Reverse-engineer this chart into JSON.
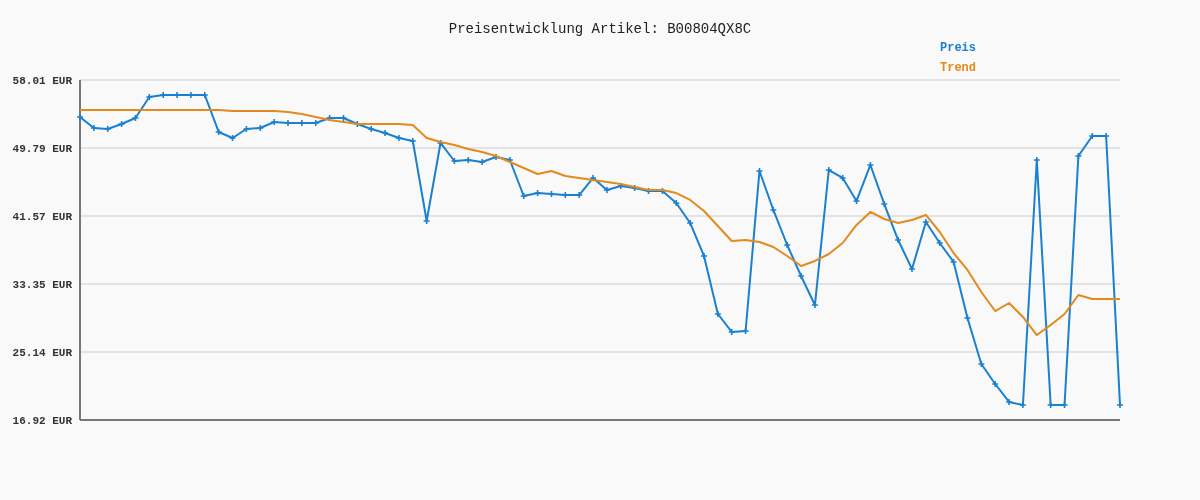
{
  "chart_data": {
    "type": "line",
    "title": "Preisentwicklung Artikel: B00804QX8C",
    "categories": [
      null,
      null,
      null,
      null,
      null,
      null,
      null,
      null,
      null,
      null,
      null,
      null,
      null,
      null,
      null,
      null,
      null,
      null,
      null,
      null,
      null,
      null,
      null,
      null,
      null,
      null,
      null,
      null,
      null,
      null,
      null,
      null,
      null,
      null,
      null,
      null,
      null,
      null,
      null,
      null,
      null,
      null,
      null,
      null,
      null,
      null,
      null,
      null,
      null,
      null,
      null,
      null,
      null,
      null,
      null,
      null,
      null,
      null,
      null,
      null,
      null,
      null,
      null,
      null,
      null,
      null,
      null,
      null,
      null,
      null,
      null,
      null,
      null,
      null,
      null,
      null
    ],
    "series": [
      {
        "name": "Preis",
        "color": "#1a80d0",
        "marker": "cross",
        "values": [
          53.54,
          52.21,
          52.09,
          52.69,
          53.42,
          55.96,
          56.2,
          56.2,
          56.2,
          56.2,
          51.73,
          51.0,
          52.09,
          52.21,
          52.93,
          52.81,
          52.81,
          52.81,
          53.42,
          53.42,
          52.69,
          52.09,
          51.6,
          51.0,
          50.64,
          40.97,
          50.4,
          48.22,
          48.34,
          48.1,
          48.7,
          48.34,
          43.99,
          44.35,
          44.23,
          44.11,
          44.11,
          46.17,
          44.72,
          45.2,
          44.96,
          44.6,
          44.6,
          43.15,
          40.73,
          36.74,
          29.73,
          27.56,
          27.68,
          47.01,
          42.3,
          38.07,
          34.32,
          30.82,
          47.13,
          46.17,
          43.39,
          47.74,
          43.02,
          38.67,
          35.17,
          40.85,
          38.31,
          36.02,
          29.25,
          23.69,
          21.27,
          19.1,
          18.73,
          48.34,
          18.73,
          18.73,
          48.83,
          51.24,
          51.24,
          18.73
        ]
      },
      {
        "name": "Trend",
        "color": "#e38a1c",
        "marker": "none",
        "values": [
          54.38,
          54.38,
          54.38,
          54.38,
          54.38,
          54.38,
          54.38,
          54.38,
          54.38,
          54.38,
          54.38,
          54.26,
          54.26,
          54.26,
          54.26,
          54.14,
          53.9,
          53.54,
          53.18,
          52.93,
          52.69,
          52.69,
          52.69,
          52.69,
          52.57,
          51.0,
          50.52,
          50.15,
          49.67,
          49.31,
          48.83,
          48.1,
          47.38,
          46.65,
          47.01,
          46.41,
          46.17,
          45.92,
          45.68,
          45.44,
          45.08,
          44.72,
          44.72,
          44.35,
          43.51,
          42.18,
          40.37,
          38.55,
          38.67,
          38.43,
          37.83,
          36.74,
          35.53,
          36.14,
          36.98,
          38.31,
          40.49,
          42.06,
          41.21,
          40.73,
          41.09,
          41.7,
          39.64,
          37.1,
          35.05,
          32.39,
          30.09,
          31.06,
          29.37,
          27.19,
          28.4,
          29.73,
          32.03,
          31.54,
          31.54,
          31.54
        ]
      }
    ],
    "ylim": [
      16.92,
      58.01
    ],
    "yticks": [
      {
        "value": 16.92,
        "label": "16.92 EUR"
      },
      {
        "value": 25.14,
        "label": "25.14 EUR"
      },
      {
        "value": 33.35,
        "label": "33.35 EUR"
      },
      {
        "value": 41.57,
        "label": "41.57 EUR"
      },
      {
        "value": 49.79,
        "label": "49.79 EUR"
      },
      {
        "value": 58.01,
        "label": "58.01 EUR"
      }
    ],
    "grid": "y",
    "legend": "top right"
  }
}
